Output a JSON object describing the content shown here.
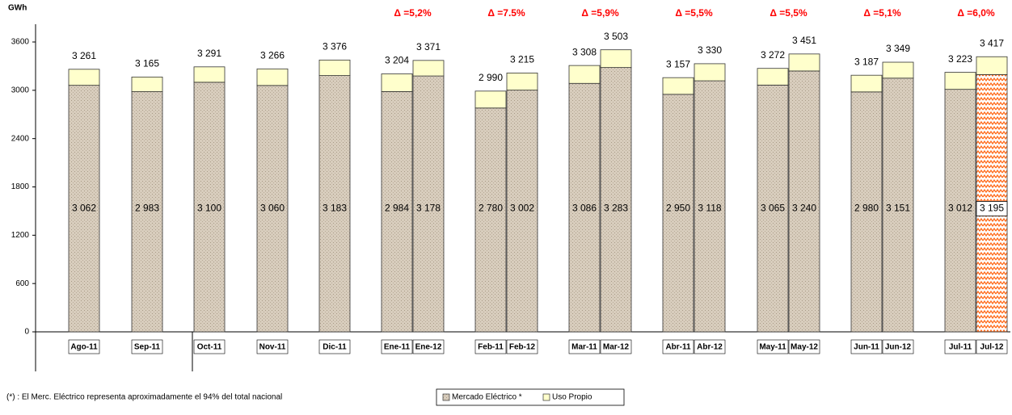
{
  "chart_data": {
    "type": "stacked_bar",
    "y_label": "GWh",
    "categories": [
      "Ago-11",
      "Sep-11",
      "Oct-11",
      "Nov-11",
      "Dic-11",
      "Ene-11",
      "Ene-12",
      "Feb-11",
      "Feb-12",
      "Mar-11",
      "Mar-12",
      "Abr-11",
      "Abr-12",
      "May-11",
      "May-12",
      "Jun-11",
      "Jun-12",
      "Jul-11",
      "Jul-12"
    ],
    "series": [
      {
        "name": "Mercado Eléctrico *",
        "color": "#d8cdbd",
        "values": [
          3062,
          2983,
          3100,
          3060,
          3183,
          2984,
          3178,
          2780,
          3002,
          3086,
          3283,
          2950,
          3118,
          3065,
          3240,
          2980,
          3151,
          3012,
          3195
        ],
        "value_labels": [
          "3 062",
          "2 983",
          "3 100",
          "3 060",
          "3 183",
          "2 984",
          "3 178",
          "2 780",
          "3 002",
          "3 086",
          "3 283",
          "2 950",
          "3 118",
          "3 065",
          "3 240",
          "2 980",
          "3 151",
          "3 012",
          "3 195"
        ]
      },
      {
        "name": "Uso Propio",
        "color": "#ffffcc",
        "values": [
          199,
          182,
          191,
          206,
          193,
          220,
          193,
          210,
          213,
          222,
          220,
          207,
          212,
          207,
          211,
          207,
          198,
          211,
          222
        ]
      }
    ],
    "totals": {
      "values": [
        3261,
        3165,
        3291,
        3266,
        3376,
        3204,
        3371,
        2990,
        3215,
        3308,
        3503,
        3157,
        3330,
        3272,
        3451,
        3187,
        3349,
        3223,
        3417
      ],
      "labels": [
        "3 261",
        "3 165",
        "3 291",
        "3 266",
        "3 376",
        "3 204",
        "3 371",
        "2 990",
        "3 215",
        "3 308",
        "3 503",
        "3 157",
        "3 330",
        "3 272",
        "3 451",
        "3 187",
        "3 349",
        "3 223",
        "3 417"
      ]
    },
    "annotations": [
      "Δ =5,2%",
      "Δ =7.5%",
      "Δ =5,9%",
      "Δ =5,5%",
      "Δ =5,5%",
      "Δ =5,1%",
      "Δ =6,0%"
    ],
    "hatched_category": "Jul-12",
    "hatch_color": "#ff6a1a",
    "ylim": [
      0,
      3600
    ],
    "yticks": [
      0,
      600,
      1200,
      1800,
      2400,
      3000,
      3600
    ],
    "footnote": "(*) : El Merc. Eléctrico representa aproximadamente el 94% del total nacional"
  }
}
